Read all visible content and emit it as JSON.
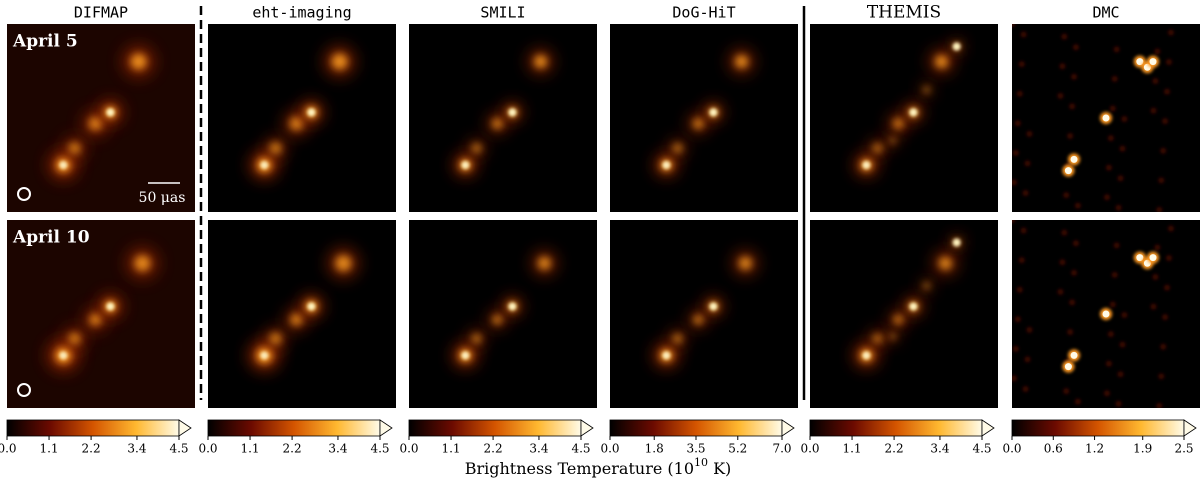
{
  "columns": [
    {
      "title": "DIFMAP",
      "colorbar": {
        "lim": [
          0,
          4.5
        ],
        "ticks": [
          {
            "value": 0,
            "label": "0.0"
          },
          1.1,
          2.2,
          3.4,
          4.5
        ]
      }
    },
    {
      "title": "eht-imaging",
      "colorbar": {
        "lim": [
          0,
          4.5
        ],
        "ticks": [
          {
            "value": 0,
            "label": "0.0"
          },
          1.1,
          2.2,
          3.4,
          4.5
        ]
      }
    },
    {
      "title": "SMILI",
      "colorbar": {
        "lim": [
          0,
          4.5
        ],
        "ticks": [
          {
            "value": 0,
            "label": "0.0"
          },
          1.1,
          2.2,
          3.4,
          4.5
        ]
      }
    },
    {
      "title": "DoG-HiT",
      "colorbar": {
        "lim": [
          0,
          7
        ],
        "ticks": [
          {
            "value": 0,
            "label": "0.0"
          },
          1.8,
          3.5,
          5.2,
          {
            "value": 7,
            "label": "7.0"
          }
        ]
      }
    },
    {
      "title": "THEMIS",
      "colorbar": {
        "lim": [
          0,
          4.5
        ],
        "ticks": [
          {
            "value": 0,
            "label": "0.0"
          },
          1.1,
          2.2,
          3.4,
          4.5
        ]
      }
    },
    {
      "title": "DMC",
      "colorbar": {
        "lim": [
          0,
          2.5
        ],
        "ticks": [
          {
            "value": 0,
            "label": "0.0"
          },
          0.6,
          1.2,
          1.9,
          2.5
        ]
      }
    }
  ],
  "rows": [
    "April 5",
    "April 10"
  ],
  "scale_bar": "50 μas",
  "colorbar_label": {
    "text": "Brightness Temperature (10",
    "superscript": "10",
    "unit": " K)"
  }
}
